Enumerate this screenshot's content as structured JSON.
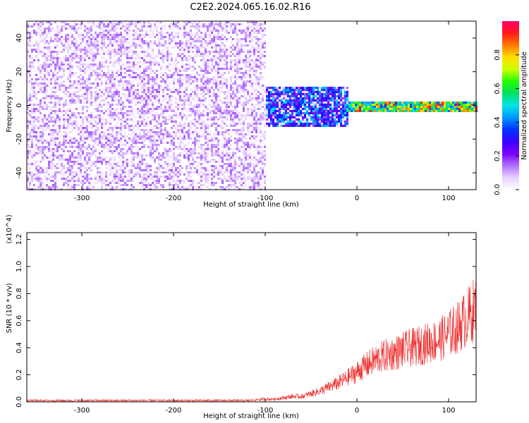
{
  "figure": {
    "title": "C2E2.2024.065.16.02.R16"
  },
  "chart_data": [
    {
      "type": "heatmap",
      "xlabel": "Height of straight line (km)",
      "ylabel": "Frequency (Hz)",
      "xlim": [
        -360,
        130
      ],
      "ylim": [
        -50,
        50
      ],
      "xticks": [
        -300,
        -200,
        -100,
        0,
        100
      ],
      "yticks": [
        -40,
        -20,
        0,
        20,
        40
      ],
      "colorbar": {
        "label": "Normalized spectral amplitude",
        "range": [
          0.0,
          1.0
        ],
        "ticks": [
          "0.0",
          "0.2",
          "0.4",
          "0.6",
          "0.8"
        ],
        "tick_values": [
          0.0,
          0.2,
          0.4,
          0.6,
          0.8
        ],
        "colormap": [
          "#ffffff",
          "#e8d0ff",
          "#b070ff",
          "#7a00ff",
          "#3a00ff",
          "#0033ff",
          "#0099ff",
          "#00e5e5",
          "#00e060",
          "#22ff00",
          "#ccff00",
          "#ffdd00",
          "#ff7a00",
          "#ff1a1a",
          "#ff0066"
        ]
      },
      "regions": [
        {
          "x": [
            -360,
            -100
          ],
          "y": [
            -50,
            50
          ],
          "description_amplitude": 0.15
        },
        {
          "x": [
            -100,
            -10
          ],
          "y": [
            -12,
            12
          ],
          "description_amplitude": 0.25
        },
        {
          "x": [
            -10,
            130
          ],
          "y": [
            -3,
            3
          ],
          "description_amplitude": 0.85
        }
      ],
      "grid": false
    },
    {
      "type": "line",
      "xlabel": "Height of straight line (km)",
      "ylabel": "SNR (10 * v/v)",
      "yscale_label": "(x10^4)",
      "xlim": [
        -360,
        130
      ],
      "ylim": [
        0.0,
        1.25
      ],
      "xticks": [
        -300,
        -200,
        -100,
        0,
        100
      ],
      "yticks": [
        "0.0",
        "0.2",
        "0.4",
        "0.6",
        "0.8",
        "1.0",
        "1.2"
      ],
      "ytick_values": [
        0.0,
        0.2,
        0.4,
        0.6,
        0.8,
        1.0,
        1.2
      ],
      "series": [
        {
          "color": "#ee3333",
          "x": [
            -360,
            -300,
            -250,
            -200,
            -150,
            -120,
            -100,
            -90,
            -80,
            -70,
            -60,
            -50,
            -40,
            -30,
            -20,
            -10,
            0,
            10,
            20,
            30,
            40,
            50,
            60,
            70,
            80,
            90,
            100,
            110,
            120,
            130
          ],
          "values": [
            0.01,
            0.01,
            0.01,
            0.01,
            0.01,
            0.01,
            0.02,
            0.02,
            0.03,
            0.04,
            0.04,
            0.06,
            0.08,
            0.11,
            0.14,
            0.18,
            0.22,
            0.27,
            0.31,
            0.34,
            0.36,
            0.38,
            0.4,
            0.42,
            0.44,
            0.46,
            0.5,
            0.55,
            0.62,
            0.7
          ]
        }
      ],
      "grid": false
    }
  ]
}
